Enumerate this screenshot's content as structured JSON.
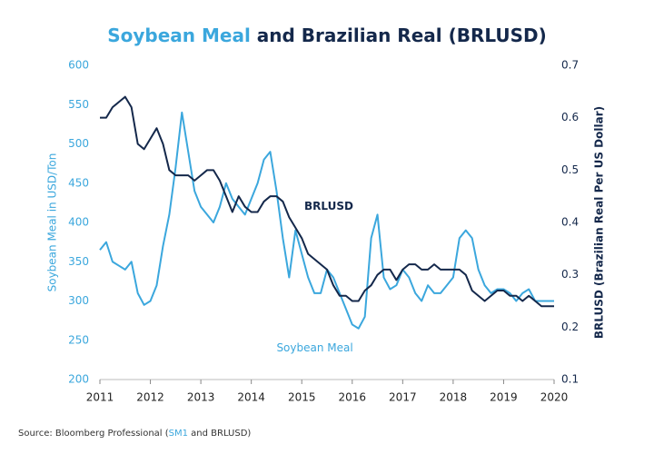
{
  "chart_data": {
    "type": "line",
    "title_parts": [
      "Soybean Meal",
      "and Brazilian Real (BRLUSD)"
    ],
    "ylabel": "Soybean Meal in USD/Ton",
    "y2label": "BRLUSD (Brazilian Real Per US Dollar)",
    "source_parts": [
      "Source: Bloomberg Professional (",
      "SM1",
      " and BRLUSD)"
    ],
    "x": [
      2011.0,
      2011.125,
      2011.25,
      2011.375,
      2011.5,
      2011.625,
      2011.75,
      2011.875,
      2012.0,
      2012.125,
      2012.25,
      2012.375,
      2012.5,
      2012.625,
      2012.75,
      2012.875,
      2013.0,
      2013.125,
      2013.25,
      2013.375,
      2013.5,
      2013.625,
      2013.75,
      2013.875,
      2014.0,
      2014.125,
      2014.25,
      2014.375,
      2014.5,
      2014.625,
      2014.75,
      2014.875,
      2015.0,
      2015.125,
      2015.25,
      2015.375,
      2015.5,
      2015.625,
      2015.75,
      2015.875,
      2016.0,
      2016.125,
      2016.25,
      2016.375,
      2016.5,
      2016.625,
      2016.75,
      2016.875,
      2017.0,
      2017.125,
      2017.25,
      2017.375,
      2017.5,
      2017.625,
      2017.75,
      2017.875,
      2018.0,
      2018.125,
      2018.25,
      2018.375,
      2018.5,
      2018.625,
      2018.75,
      2018.875,
      2019.0,
      2019.125,
      2019.25,
      2019.375,
      2019.5,
      2019.625,
      2019.75,
      2019.875,
      2020.0
    ],
    "series": [
      {
        "name": "Soybean Meal",
        "color": "#3ba7dd",
        "axis": "y",
        "values": [
          365,
          375,
          350,
          345,
          340,
          350,
          310,
          295,
          300,
          320,
          370,
          410,
          470,
          540,
          490,
          440,
          420,
          410,
          400,
          420,
          450,
          430,
          420,
          410,
          430,
          450,
          480,
          490,
          440,
          380,
          330,
          390,
          360,
          330,
          310,
          310,
          340,
          330,
          310,
          290,
          270,
          265,
          280,
          380,
          410,
          330,
          315,
          320,
          340,
          330,
          310,
          300,
          320,
          310,
          310,
          320,
          330,
          380,
          390,
          380,
          340,
          320,
          310,
          315,
          315,
          310,
          300,
          310,
          315,
          300,
          300,
          300,
          300
        ]
      },
      {
        "name": "BRLUSD",
        "color": "#14284b",
        "axis": "y2",
        "values": [
          0.6,
          0.6,
          0.62,
          0.63,
          0.64,
          0.62,
          0.55,
          0.54,
          0.56,
          0.58,
          0.55,
          0.5,
          0.49,
          0.49,
          0.49,
          0.48,
          0.49,
          0.5,
          0.5,
          0.48,
          0.45,
          0.42,
          0.45,
          0.43,
          0.42,
          0.42,
          0.44,
          0.45,
          0.45,
          0.44,
          0.41,
          0.39,
          0.37,
          0.34,
          0.33,
          0.32,
          0.31,
          0.28,
          0.26,
          0.26,
          0.25,
          0.25,
          0.27,
          0.28,
          0.3,
          0.31,
          0.31,
          0.29,
          0.31,
          0.32,
          0.32,
          0.31,
          0.31,
          0.32,
          0.31,
          0.31,
          0.31,
          0.31,
          0.3,
          0.27,
          0.26,
          0.25,
          0.26,
          0.27,
          0.27,
          0.26,
          0.26,
          0.25,
          0.26,
          0.25,
          0.24,
          0.24,
          0.24
        ]
      }
    ],
    "xlim": [
      2011,
      2020
    ],
    "xticks": [
      2011,
      2012,
      2013,
      2014,
      2015,
      2016,
      2017,
      2018,
      2019,
      2020
    ],
    "ylim": [
      200,
      600
    ],
    "yticks": [
      200,
      250,
      300,
      350,
      400,
      450,
      500,
      550,
      600
    ],
    "y2lim": [
      0.1,
      0.7
    ],
    "y2ticks": [
      0.1,
      0.2,
      0.3,
      0.4,
      0.5,
      0.6,
      0.7
    ],
    "grid": false
  }
}
